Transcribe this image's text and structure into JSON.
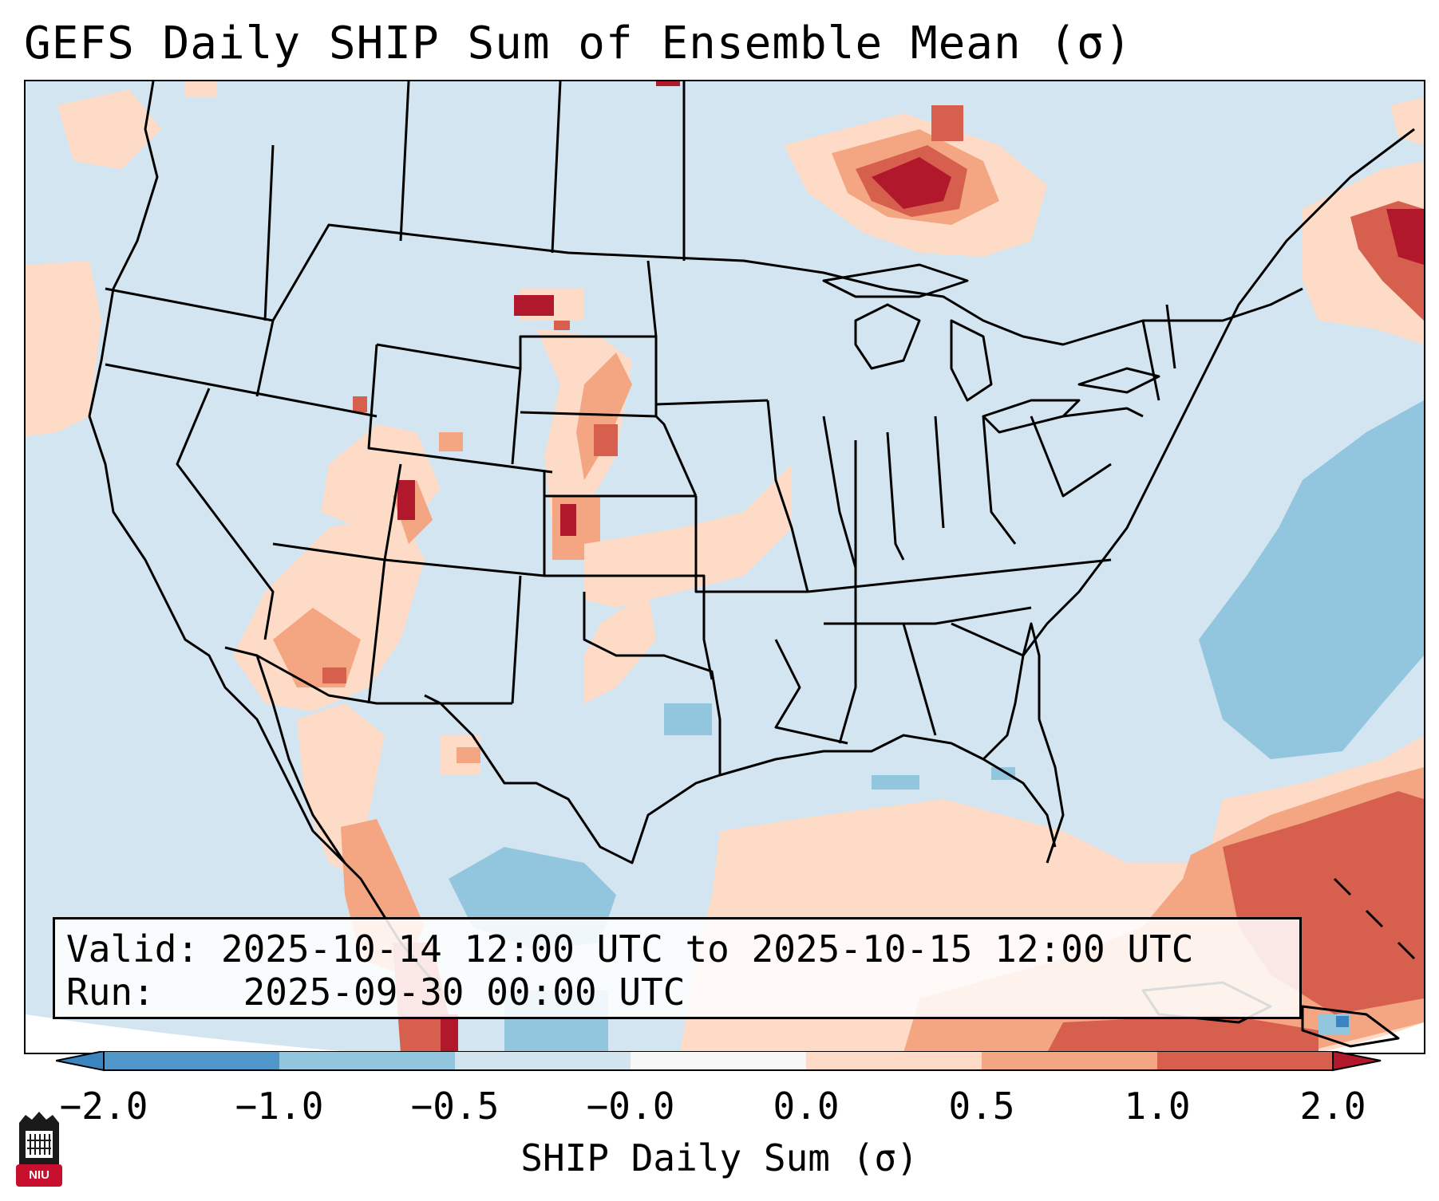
{
  "title": "GEFS Daily SHIP Sum of Ensemble Mean (σ)",
  "info_box": {
    "valid_label": "Valid:",
    "valid_value": "2025-10-14 12:00 UTC to 2025-10-15 12:00 UTC",
    "run_label": "Run:",
    "run_value": "2025-09-30 00:00 UTC"
  },
  "colorbar": {
    "label": "SHIP Daily Sum (σ)",
    "ticks": [
      "−2.0",
      "−1.0",
      "−0.5",
      "−0.0",
      "0.0",
      "0.5",
      "1.0",
      "2.0"
    ],
    "bins": [
      {
        "range": "< -2.0",
        "color": "#3a85c0"
      },
      {
        "range": "-2.0 to -1.0",
        "color": "#4f97c9"
      },
      {
        "range": "-1.0 to -0.5",
        "color": "#92c5de"
      },
      {
        "range": "-0.5 to -0.0",
        "color": "#d1e5f0"
      },
      {
        "range": "-0.0 to 0.0",
        "color": "#f7f7f7"
      },
      {
        "range": "0.0 to 0.5",
        "color": "#fddbc7"
      },
      {
        "range": "0.5 to 1.0",
        "color": "#f4a582"
      },
      {
        "range": "1.0 to 2.0",
        "color": "#d6604d"
      },
      {
        "range": "> 2.0",
        "color": "#b2182b"
      }
    ]
  },
  "logo": {
    "text": "NIU",
    "color": "#c8102e"
  }
}
